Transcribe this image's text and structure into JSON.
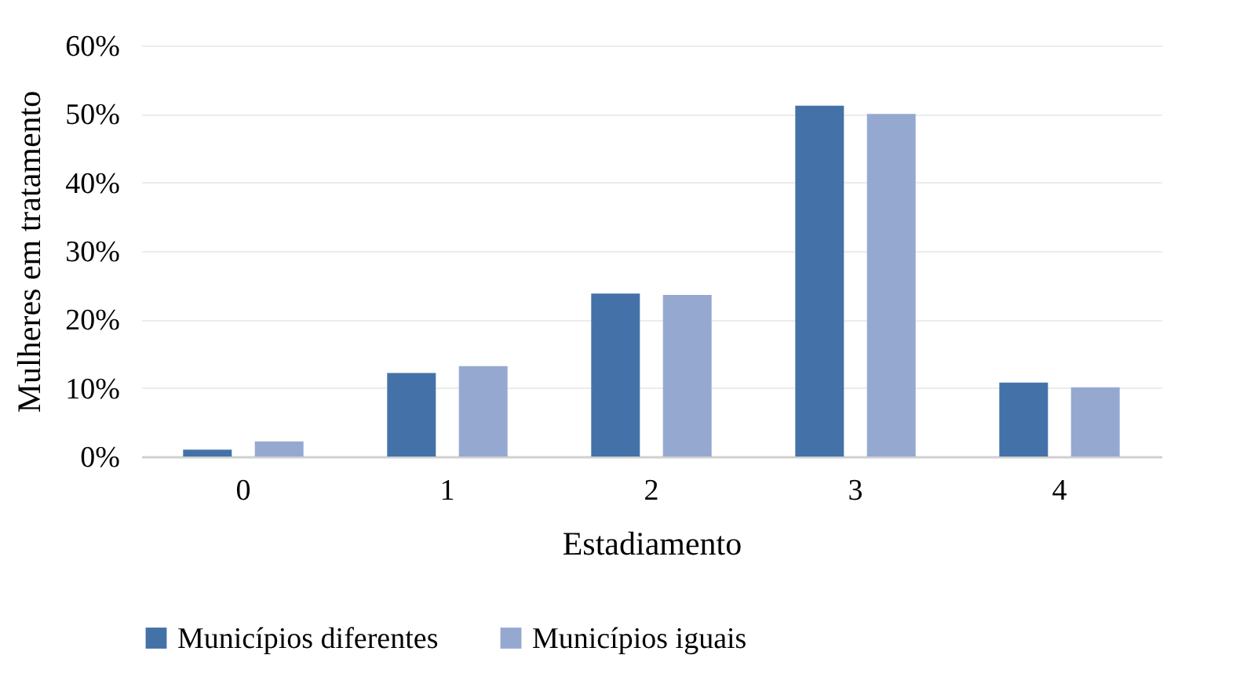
{
  "chart_data": {
    "type": "bar",
    "xlabel": "Estadiamento",
    "ylabel": "Mulheres em tratamento",
    "categories": [
      "0",
      "1",
      "2",
      "3",
      "4"
    ],
    "series": [
      {
        "name": "Municípios diferentes",
        "color": "#4472a8",
        "values": [
          1.0,
          12.2,
          23.8,
          51.2,
          10.8
        ]
      },
      {
        "name": "Municípios iguais",
        "color": "#95a9d0",
        "values": [
          2.2,
          13.2,
          23.6,
          50.0,
          10.1
        ]
      }
    ],
    "ylim": [
      0,
      60
    ],
    "yticks": [
      {
        "value": 0,
        "label": "0%"
      },
      {
        "value": 10,
        "label": "10%"
      },
      {
        "value": 20,
        "label": "20%"
      },
      {
        "value": 30,
        "label": "30%"
      },
      {
        "value": 40,
        "label": "40%"
      },
      {
        "value": 50,
        "label": "50%"
      },
      {
        "value": 60,
        "label": "60%"
      }
    ],
    "grid": "y",
    "legend": "bottom"
  }
}
